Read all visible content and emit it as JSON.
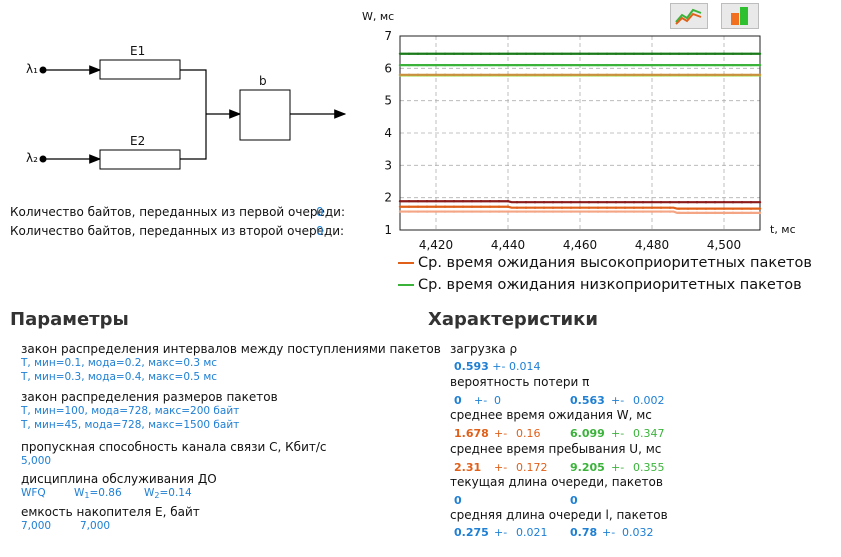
{
  "diagram": {
    "lambda1": "λ₁",
    "lambda2": "λ₂",
    "e1": "E1",
    "e2": "E2",
    "b": "b"
  },
  "bytes": {
    "first": "Количество байтов, переданных из первой очереди:",
    "first_value": "0",
    "second": "Количество байтов, переданных из второй очереди:",
    "second_value": "0"
  },
  "toolbar": {
    "line_chart_icon": "line-chart-icon",
    "bar_chart_icon": "bar-chart-icon"
  },
  "colors": {
    "orange": "#e0601a",
    "green": "#3bb33b",
    "blue": "#1e7fd3"
  },
  "chart_data": {
    "type": "line",
    "ylabel": "W, мс",
    "xlabel": "t, мс",
    "xlim": [
      4410,
      4510
    ],
    "ylim": [
      1,
      7
    ],
    "x_ticks": [
      "4,420",
      "4,440",
      "4,460",
      "4,480",
      "4,500"
    ],
    "y_ticks": [
      "1",
      "2",
      "3",
      "4",
      "5",
      "6",
      "7"
    ],
    "grid": true,
    "legend_position": "bottom",
    "series": [
      {
        "name": "Ср. время ожидания высокоприоритетных пакетов",
        "color": "#e0601a",
        "x": [
          4410,
          4440,
          4441,
          4486,
          4487,
          4510
        ],
        "y": [
          1.72,
          1.72,
          1.69,
          1.69,
          1.66,
          1.66
        ]
      },
      {
        "name": "Ср. время ожидания низкоприоритетных пакетов",
        "color": "#3bb33b",
        "x": [
          4410,
          4510
        ],
        "y": [
          6.1,
          6.1
        ]
      },
      {
        "color": "#1a7a1a",
        "x": [
          4410,
          4510
        ],
        "y": [
          6.45,
          6.45
        ]
      },
      {
        "color": "#9ed83a",
        "x": [
          4410,
          4510
        ],
        "y": [
          5.78,
          5.78
        ]
      },
      {
        "color": "#c99040",
        "x": [
          4410,
          4510
        ],
        "y": [
          5.8,
          5.8
        ]
      },
      {
        "color": "#8b1a1a",
        "x": [
          4410,
          4440,
          4441,
          4510
        ],
        "y": [
          1.89,
          1.89,
          1.86,
          1.86
        ]
      },
      {
        "color": "#f4a584",
        "x": [
          4410,
          4486,
          4487,
          4510
        ],
        "y": [
          1.57,
          1.57,
          1.53,
          1.53
        ]
      }
    ]
  },
  "params": {
    "title": "Параметры",
    "arrival_law": "закон распределения интервалов между поступлениями пакетов",
    "arrival_1": "T, мин=0.1, мода=0.2, макс=0.3 мс",
    "arrival_2": "T, мин=0.3, мода=0.4, макс=0.5 мс",
    "size_law": "закон распределения размеров пакетов",
    "size_1": "T, мин=100, мода=728, макс=200 байт",
    "size_2": "T, мин=45, мода=728, макс=1500 байт",
    "capacity_label": "пропускная способность канала связи C, Кбит/с",
    "capacity_value": "5,000",
    "discipline_label": "дисциплина обслуживания ДО",
    "discipline_value": "WFQ",
    "w1_label": "W",
    "w1_sub": "1",
    "w1_value": "=0.86",
    "w2_label": "W",
    "w2_sub": "2",
    "w2_value": "=0.14",
    "buffer_label": "емкость накопителя E, байт",
    "buffer_1": "7,000",
    "buffer_2": "7,000"
  },
  "chars": {
    "title": "Характеристики",
    "load_label": "загрузка ρ",
    "load_1": "0.593",
    "load_1_pm": "+-",
    "load_1_err": "0.014",
    "loss_label": "вероятность потери π",
    "loss_1": "0",
    "loss_1_pm": "+-",
    "loss_1_err": "0",
    "loss_2": "0.563",
    "loss_2_pm": "+-",
    "loss_2_err": "0.002",
    "wait_label": "среднее время ожидания W, мс",
    "wait_1": "1.678",
    "wait_1_pm": "+-",
    "wait_1_err": "0.16",
    "wait_2": "6.099",
    "wait_2_pm": "+-",
    "wait_2_err": "0.347",
    "stay_label": "среднее время пребывания U, мс",
    "stay_1": "2.31",
    "stay_1_pm": "+-",
    "stay_1_err": "0.172",
    "stay_2": "9.205",
    "stay_2_pm": "+-",
    "stay_2_err": "0.355",
    "queue_label": "текущая длина очереди, пакетов",
    "queue_1": "0",
    "queue_2": "0",
    "avgq_label": "средняя длина очереди l, пакетов",
    "avgq_1": "0.275",
    "avgq_1_pm": "+-",
    "avgq_1_err": "0.021",
    "avgq_2": "0.78",
    "avgq_2_pm": "+-",
    "avgq_2_err": "0.032"
  }
}
